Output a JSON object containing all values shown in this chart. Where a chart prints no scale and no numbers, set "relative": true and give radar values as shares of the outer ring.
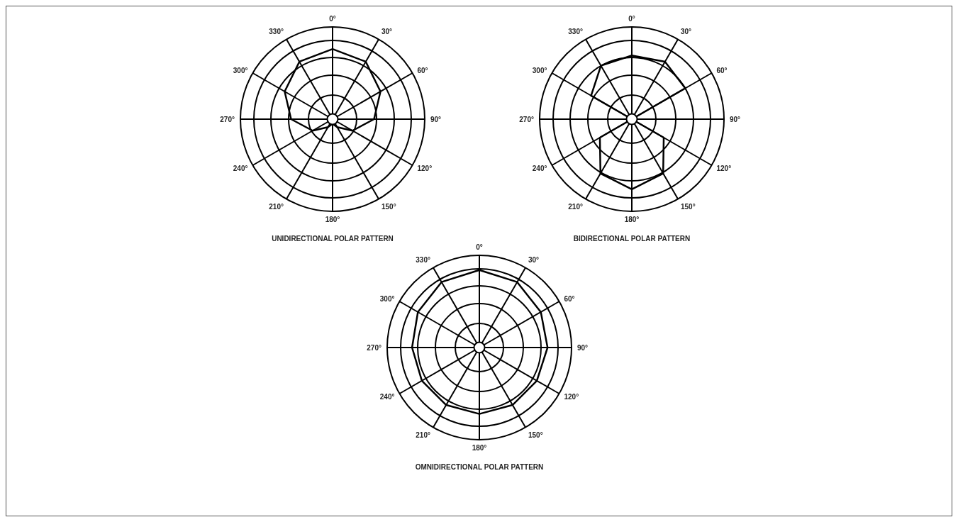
{
  "chart_data": [
    {
      "type": "radar",
      "title": "UNIDIRECTIONAL POLAR PATTERN",
      "relative": true,
      "grid": true,
      "marker": "none",
      "categories": [
        "0°",
        "30°",
        "60°",
        "90°",
        "120°",
        "150°",
        "180°",
        "210°",
        "240°",
        "270°",
        "300°",
        "330°"
      ],
      "series": [
        {
          "color": "#000000",
          "values": [
            0.76,
            0.72,
            0.6,
            0.45,
            0.25,
            0.1,
            0.05,
            0.1,
            0.25,
            0.45,
            0.6,
            0.72
          ]
        }
      ]
    },
    {
      "type": "radar",
      "title": "BIDIRECTIONAL POLAR PATTERN",
      "relative": true,
      "grid": true,
      "marker": "none",
      "categories": [
        "0°",
        "30°",
        "60°",
        "90°",
        "120°",
        "150°",
        "180°",
        "210°",
        "240°",
        "270°",
        "300°",
        "330°"
      ],
      "series": [
        {
          "color": "#000000",
          "values": [
            0.69,
            0.72,
            0.67,
            0,
            0.4,
            0.68,
            0.76,
            0.68,
            0.4,
            0,
            0.51,
            0.67
          ]
        }
      ]
    },
    {
      "type": "radar",
      "title": "OMNIDIRECTIONAL POLAR PATTERN",
      "relative": true,
      "grid": true,
      "marker": "none",
      "categories": [
        "0°",
        "30°",
        "60°",
        "90°",
        "120°",
        "150°",
        "180°",
        "210°",
        "240°",
        "270°",
        "300°",
        "330°"
      ],
      "series": [
        {
          "color": "#000000",
          "values": [
            0.84,
            0.82,
            0.77,
            0.74,
            0.72,
            0.72,
            0.72,
            0.72,
            0.72,
            0.73,
            0.77,
            0.82
          ]
        }
      ]
    }
  ]
}
